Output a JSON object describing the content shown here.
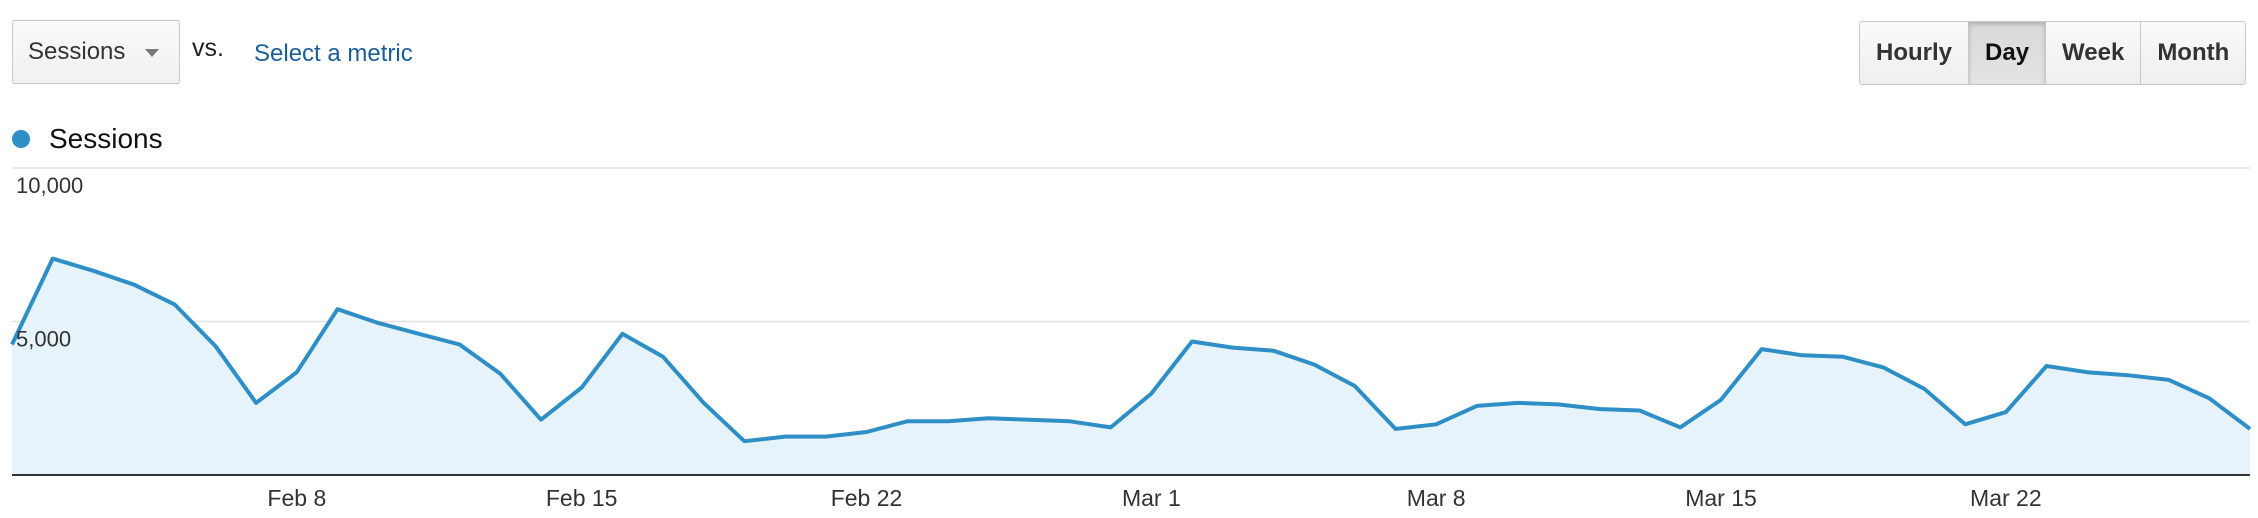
{
  "controls": {
    "metric": "Sessions",
    "vs": "vs.",
    "compare": "Select a metric",
    "buttons": [
      "Hourly",
      "Day",
      "Week",
      "Month"
    ],
    "active": "Day"
  },
  "chart_data": {
    "type": "area",
    "categories": [
      null,
      null,
      null,
      null,
      null,
      null,
      null,
      "Feb 8",
      null,
      null,
      null,
      null,
      null,
      null,
      "Feb 15",
      null,
      null,
      null,
      null,
      null,
      null,
      "Feb 22",
      null,
      null,
      null,
      null,
      null,
      null,
      "Mar 1",
      null,
      null,
      null,
      null,
      null,
      null,
      "Mar 8",
      null,
      null,
      null,
      null,
      null,
      null,
      "Mar 15",
      null,
      null,
      null,
      null,
      null,
      null,
      "Mar 22",
      null,
      null,
      null,
      null,
      null,
      null
    ],
    "series": [
      {
        "name": "Sessions",
        "color": "#2e8fc6",
        "values": [
          4250,
          7050,
          6650,
          6200,
          5550,
          4200,
          2350,
          3350,
          5400,
          4950,
          4600,
          4250,
          3300,
          1800,
          2850,
          4600,
          3850,
          2350,
          1100,
          1250,
          1250,
          1400,
          1750,
          1750,
          1850,
          1800,
          1750,
          1550,
          2650,
          4350,
          4150,
          4050,
          3600,
          2900,
          1500,
          1650,
          2250,
          2350,
          2300,
          2150,
          2100,
          1550,
          2450,
          4100,
          3900,
          3850,
          3500,
          2800,
          1650,
          2050,
          3550,
          3350,
          3250,
          3100,
          2500,
          1500
        ]
      }
    ],
    "ylim": [
      0,
      10000
    ],
    "yticks": [
      {
        "value": 5000,
        "label": "5,000"
      },
      {
        "value": 10000,
        "label": "10,000"
      }
    ],
    "grid": true
  }
}
